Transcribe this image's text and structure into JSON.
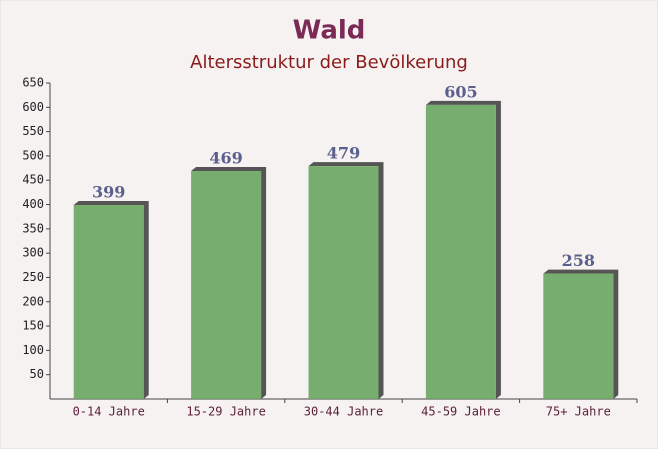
{
  "chart_data": {
    "type": "bar",
    "title": "Wald",
    "subtitle": "Altersstruktur der Bevölkerung",
    "categories": [
      "0-14 Jahre",
      "15-29 Jahre",
      "30-44 Jahre",
      "45-59 Jahre",
      "75+ Jahre"
    ],
    "values": [
      399,
      469,
      479,
      605,
      258
    ],
    "color": "#6aa562",
    "ylim": [
      0,
      650
    ],
    "yticks": [
      50,
      100,
      150,
      200,
      250,
      300,
      350,
      400,
      450,
      500,
      550,
      600,
      650
    ]
  }
}
